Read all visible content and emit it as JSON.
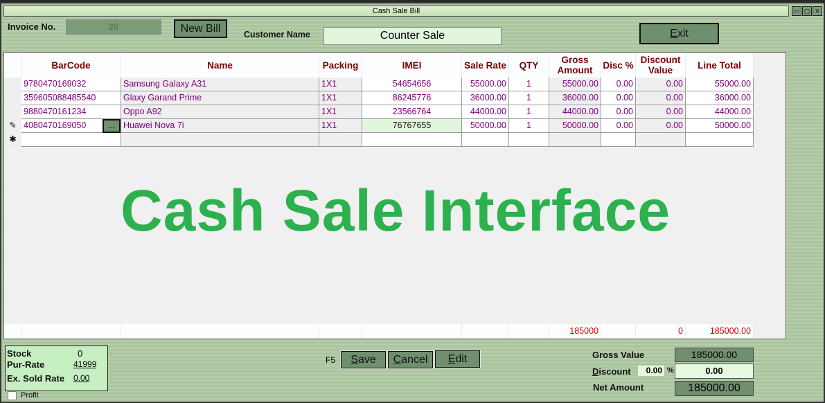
{
  "window": {
    "title": "Cash Sale Bill",
    "minimize": "▭",
    "maximize": "▢",
    "close": "✕"
  },
  "header": {
    "invoice_label": "Invoice No.",
    "invoice_value": "20",
    "new_bill": "New Bill",
    "customer_label": "Customer Name",
    "customer_value": "Counter Sale",
    "exit": "Exit"
  },
  "grid": {
    "columns": [
      "BarCode",
      "Name",
      "Packing",
      "IMEI",
      "Sale Rate",
      "QTY",
      "Gross Amount",
      "Disc %",
      "Discount Value",
      "Line Total"
    ],
    "rows": [
      [
        "9780470169032",
        "Samsung Galaxy A31",
        "1X1",
        "54654656",
        "55000.00",
        "1",
        "55000.00",
        "0.00",
        "0.00",
        "55000.00"
      ],
      [
        "359605088485540",
        "Glaxy Garand Prime",
        "1X1",
        "86245776",
        "36000.00",
        "1",
        "36000.00",
        "0.00",
        "0.00",
        "36000.00"
      ],
      [
        "9880470161234",
        "Oppo A92",
        "1X1",
        "23566764",
        "44000.00",
        "1",
        "44000.00",
        "0.00",
        "0.00",
        "44000.00"
      ],
      [
        "4080470169050",
        "Huawei Nova 7i",
        "1X1",
        "76767655",
        "50000.00",
        "1",
        "50000.00",
        "0.00",
        "0.00",
        "50000.00"
      ]
    ],
    "browse_button": "...",
    "edit_marker": "✎",
    "new_row_marker": "✱",
    "totals": {
      "gross_amount": "185000",
      "discount_value": "0",
      "line_total": "185000.00"
    }
  },
  "watermark": "Cash Sale Interface",
  "info": {
    "stock_label": "Stock",
    "stock_value": "0",
    "pur_rate_label": "Pur-Rate",
    "pur_rate_value": "41999",
    "ex_sold_label": "Ex. Sold Rate",
    "ex_sold_value": "0.00",
    "profit_label": "Profit",
    "profit_checked": false
  },
  "actions": {
    "f5": "F5",
    "save": "Save",
    "cancel": "Cancel",
    "edit": "Edit"
  },
  "summary": {
    "gross_label": "Gross Value",
    "gross_value": "185000.00",
    "discount_label": "Discount",
    "discount_pct": "0.00",
    "pct_sign": "%",
    "discount_value": "0.00",
    "net_label": "Net Amount",
    "net_value": "185000.00"
  }
}
